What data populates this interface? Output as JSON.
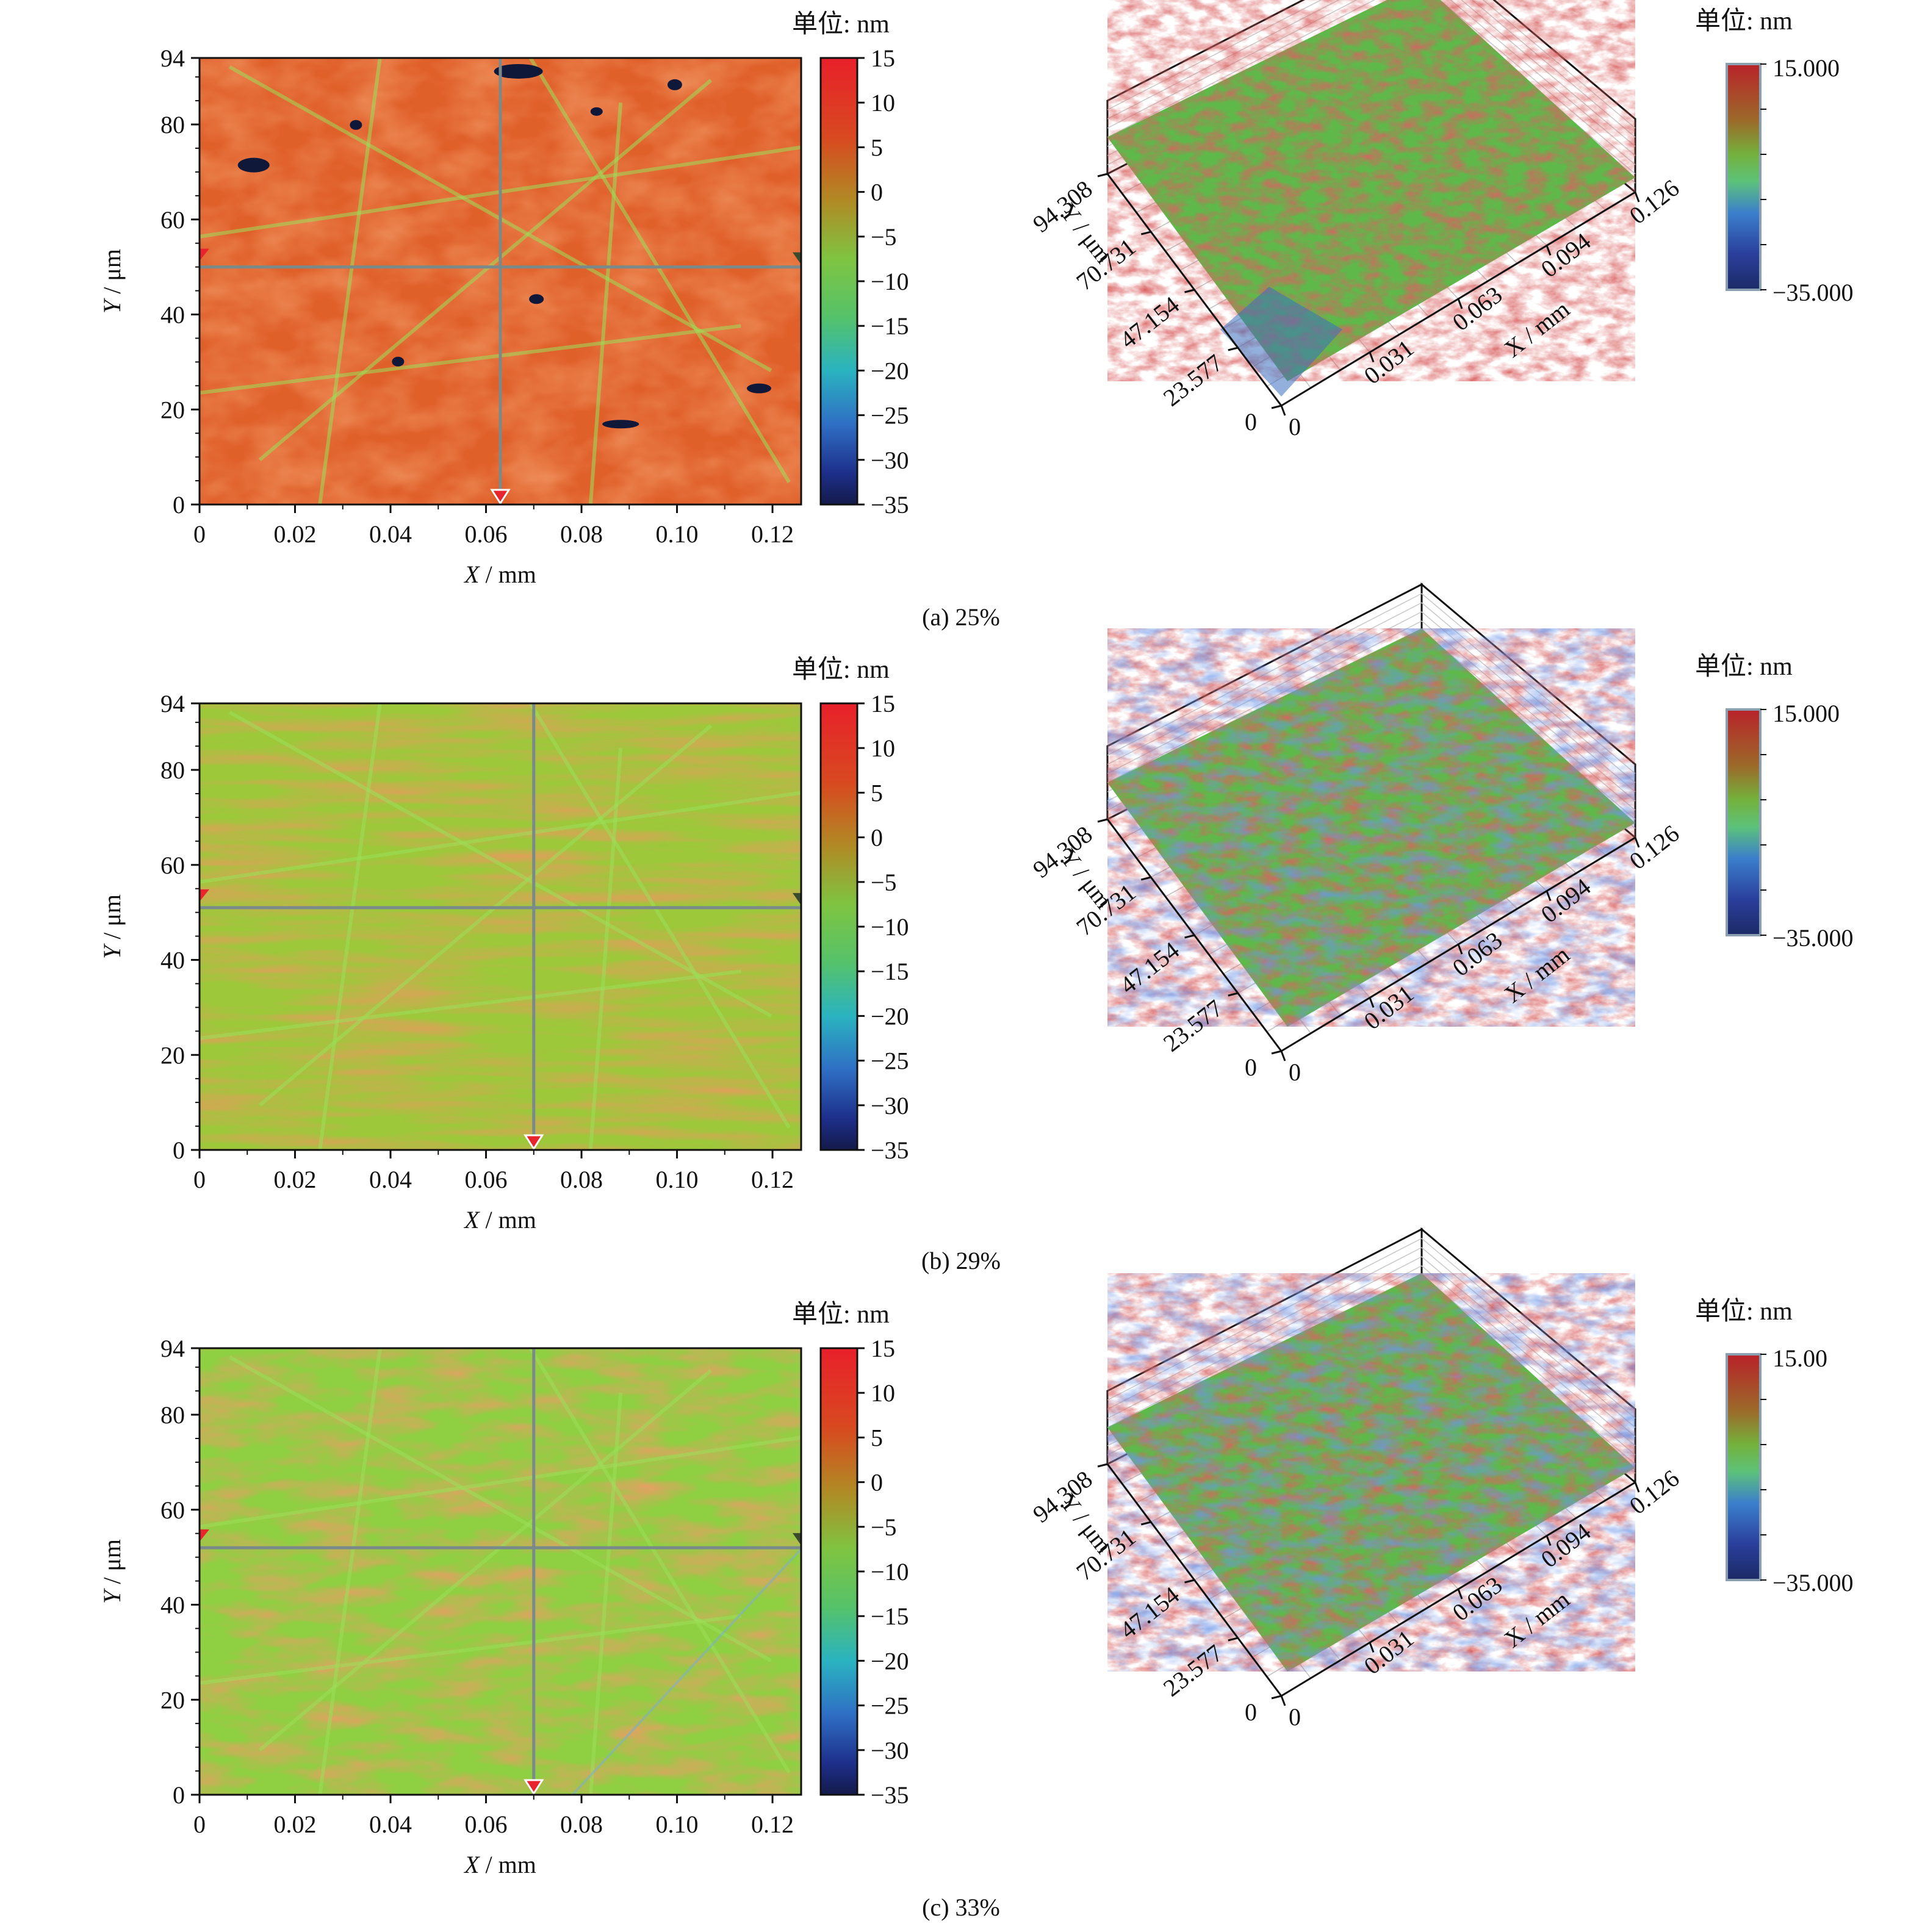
{
  "unit_label": "单位: nm",
  "chart_data": [
    {
      "type": "heatmap",
      "caption": "(a) 25%",
      "heatmap": {
        "xlabel_var": "X",
        "xlabel_unit": " / mm",
        "ylabel_var": "Y",
        "ylabel_unit": " / μm",
        "xlim": [
          0,
          0.126
        ],
        "ylim": [
          0,
          94
        ],
        "x_ticks": [
          "0",
          "0.02",
          "0.04",
          "0.06",
          "0.08",
          "0.10",
          "0.12"
        ],
        "y_ticks": [
          "0",
          "20",
          "40",
          "60",
          "80",
          "94"
        ],
        "crosshair": {
          "x": 0.063,
          "y": 50
        },
        "colorbar_ticks": [
          "15",
          "10",
          "5",
          "0",
          "−5",
          "−10",
          "−15",
          "−20",
          "−25",
          "−30",
          "−35"
        ],
        "zlim": [
          -35,
          15
        ],
        "texture": "scratches-red"
      },
      "surface": {
        "colorbar_max": "15.000",
        "colorbar_min": "−35.000",
        "x_ticks": [
          "0",
          "0.031",
          "0.063",
          "0.094",
          "0.126"
        ],
        "y_ticks": [
          "0",
          "23.577",
          "47.154",
          "70.731",
          "94.308"
        ],
        "xlabel": "X / mm",
        "ylabel": "Y / μm"
      }
    },
    {
      "type": "heatmap",
      "caption": "(b) 29%",
      "heatmap": {
        "xlabel_var": "X",
        "xlabel_unit": " / mm",
        "ylabel_var": "Y",
        "ylabel_unit": " / μm",
        "xlim": [
          0,
          0.126
        ],
        "ylim": [
          0,
          94
        ],
        "x_ticks": [
          "0",
          "0.02",
          "0.04",
          "0.06",
          "0.08",
          "0.10",
          "0.12"
        ],
        "y_ticks": [
          "0",
          "20",
          "40",
          "60",
          "80",
          "94"
        ],
        "crosshair": {
          "x": 0.07,
          "y": 51
        },
        "colorbar_ticks": [
          "15",
          "10",
          "5",
          "0",
          "−5",
          "−10",
          "−15",
          "−20",
          "−25",
          "−30",
          "−35"
        ],
        "zlim": [
          -35,
          15
        ],
        "texture": "grid-mixed"
      },
      "surface": {
        "colorbar_max": "15.000",
        "colorbar_min": "−35.000",
        "x_ticks": [
          "0",
          "0.031",
          "0.063",
          "0.094",
          "0.126"
        ],
        "y_ticks": [
          "0",
          "23.577",
          "47.154",
          "70.731",
          "94.308"
        ],
        "xlabel": "X / mm",
        "ylabel": "Y / μm"
      }
    },
    {
      "type": "heatmap",
      "caption": "(c) 33%",
      "heatmap": {
        "xlabel_var": "X",
        "xlabel_unit": " / mm",
        "ylabel_var": "Y",
        "ylabel_unit": " / μm",
        "xlim": [
          0,
          0.126
        ],
        "ylim": [
          0,
          94
        ],
        "x_ticks": [
          "0",
          "0.02",
          "0.04",
          "0.06",
          "0.08",
          "0.10",
          "0.12"
        ],
        "y_ticks": [
          "0",
          "20",
          "40",
          "60",
          "80",
          "94"
        ],
        "crosshair": {
          "x": 0.07,
          "y": 52
        },
        "colorbar_ticks": [
          "15",
          "10",
          "5",
          "0",
          "−5",
          "−10",
          "−15",
          "−20",
          "−25",
          "−30",
          "−35"
        ],
        "zlim": [
          -35,
          15
        ],
        "texture": "diagonal-streaks"
      },
      "surface": {
        "colorbar_max": "15.00",
        "colorbar_min": "−35.000",
        "x_ticks": [
          "0",
          "0.031",
          "0.063",
          "0.094",
          "0.126"
        ],
        "y_ticks": [
          "0",
          "23.577",
          "47.154",
          "70.731",
          "94.308"
        ],
        "xlabel": "X / mm",
        "ylabel": "Y / μm"
      }
    }
  ]
}
